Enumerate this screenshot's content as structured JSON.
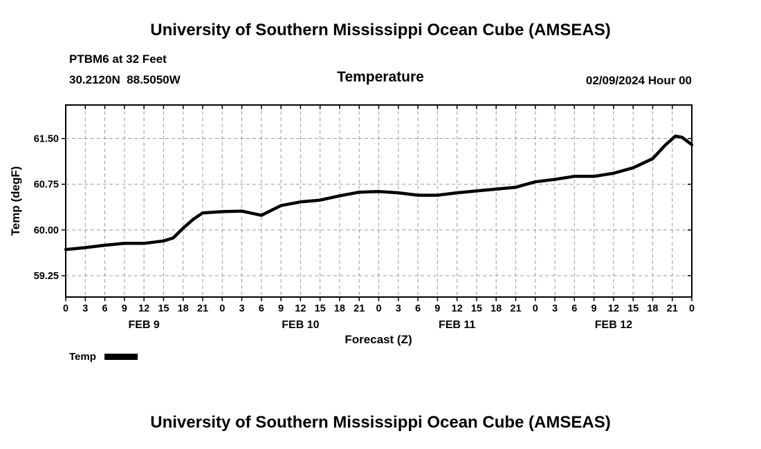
{
  "titles": {
    "top": "University of Southern Mississippi Ocean Cube (AMSEAS)",
    "bottom": "University of Southern Mississippi Ocean Cube (AMSEAS)"
  },
  "chart_data": {
    "type": "line",
    "title": "Temperature",
    "station": "PTBM6 at 32 Feet",
    "coords": "30.2120N  88.5050W",
    "run_label": "02/09/2024 Hour 00",
    "xlabel": "Forecast (Z)",
    "ylabel": "Temp (degF)",
    "xlim": [
      0,
      96
    ],
    "ylim": [
      58.9,
      62.05
    ],
    "grid": true,
    "legend_position": "bottom-left",
    "yticks": [
      59.25,
      60.0,
      60.75,
      61.5
    ],
    "ytick_labels": [
      "59.25",
      "60.00",
      "60.75",
      "61.50"
    ],
    "xticks": [
      0,
      3,
      6,
      9,
      12,
      15,
      18,
      21,
      24,
      27,
      30,
      33,
      36,
      39,
      42,
      45,
      48,
      51,
      54,
      57,
      60,
      63,
      66,
      69,
      72,
      75,
      78,
      81,
      84,
      87,
      90,
      93,
      96
    ],
    "xtick_labels": [
      "0",
      "3",
      "6",
      "9",
      "12",
      "15",
      "18",
      "21",
      "0",
      "3",
      "6",
      "9",
      "12",
      "15",
      "18",
      "21",
      "0",
      "3",
      "6",
      "9",
      "12",
      "15",
      "18",
      "21",
      "0",
      "3",
      "6",
      "9",
      "12",
      "15",
      "18",
      "21",
      "0"
    ],
    "day_labels": [
      {
        "label": "FEB 9",
        "hour": 12
      },
      {
        "label": "FEB 10",
        "hour": 36
      },
      {
        "label": "FEB 11",
        "hour": 60
      },
      {
        "label": "FEB 12",
        "hour": 84
      }
    ],
    "legend": [
      {
        "label": "Temp",
        "color": "#000000"
      }
    ],
    "line_color": "#000000",
    "grid_color": "#999999",
    "series": [
      {
        "name": "Temp",
        "x": [
          0,
          3,
          6,
          9,
          12,
          15,
          16.5,
          18,
          19.5,
          21,
          24,
          27,
          30,
          33,
          36,
          39,
          42,
          45,
          48,
          51,
          54,
          57,
          60,
          63,
          66,
          69,
          72,
          75,
          78,
          81,
          84,
          87,
          90,
          92,
          93.5,
          94.5,
          96
        ],
        "y": [
          59.68,
          59.71,
          59.75,
          59.78,
          59.78,
          59.82,
          59.87,
          60.03,
          60.17,
          60.28,
          60.3,
          60.31,
          60.24,
          60.4,
          60.46,
          60.49,
          60.56,
          60.62,
          60.63,
          60.61,
          60.57,
          60.57,
          60.61,
          60.64,
          60.67,
          60.7,
          60.79,
          60.83,
          60.88,
          60.88,
          60.93,
          61.02,
          61.17,
          61.4,
          61.54,
          61.52,
          61.4
        ]
      }
    ]
  }
}
